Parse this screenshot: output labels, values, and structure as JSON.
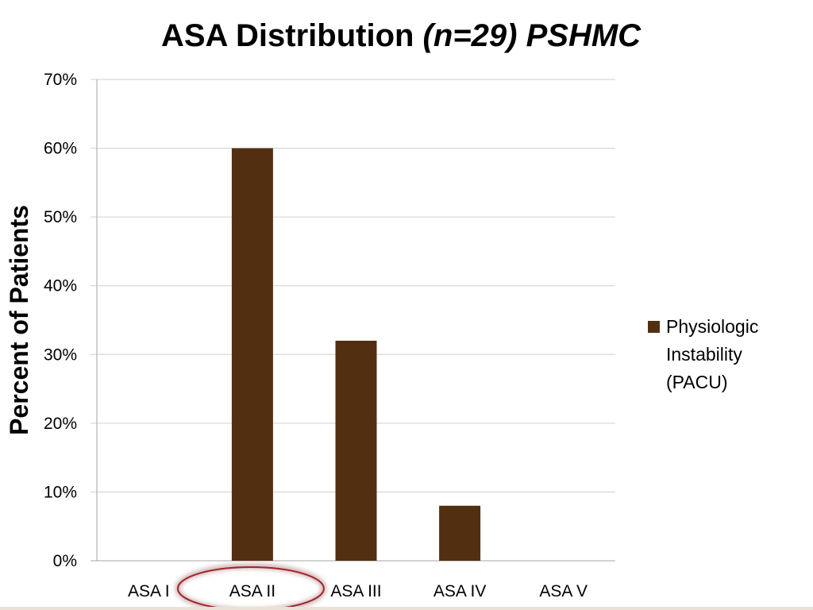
{
  "title": {
    "main": "ASA Distribution ",
    "n_part": "(n=29)",
    "site": " PSHMC"
  },
  "chart_data": {
    "type": "bar",
    "title": "ASA Distribution (n=29) PSHMC",
    "categories": [
      "ASA I",
      "ASA II",
      "ASA III",
      "ASA IV",
      "ASA V"
    ],
    "series": [
      {
        "name": "Physiologic Instability (PACU)",
        "values": [
          0,
          60,
          32,
          8,
          0
        ],
        "color": "#532f12"
      }
    ],
    "ylabel": "Percent of Patients",
    "xlabel": "",
    "ylim": [
      0,
      70
    ],
    "yticks": [
      "0%",
      "10%",
      "20%",
      "30%",
      "40%",
      "50%",
      "60%",
      "70%"
    ],
    "grid": true,
    "legend_position": "right",
    "highlighted_category": "ASA II",
    "highlight_color": "#a0252b"
  },
  "legend": {
    "lines": [
      "Physiologic",
      "Instability",
      "(PACU)"
    ]
  }
}
